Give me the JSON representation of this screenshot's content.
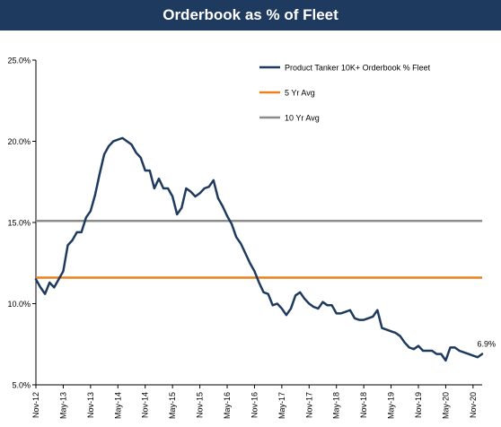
{
  "header": {
    "title": "Orderbook as % of Fleet"
  },
  "colors": {
    "title_bg": "#1f3a5f",
    "main_series": "#1f3a5f",
    "avg5": "#e8821e",
    "avg10": "#8c8c8c"
  },
  "chart_data": {
    "type": "line",
    "title": "Orderbook as % of Fleet",
    "xlabel": "",
    "ylabel": "",
    "ylim": [
      5,
      25
    ],
    "y_ticks": [
      "5.0%",
      "10.0%",
      "15.0%",
      "20.0%",
      "25.0%"
    ],
    "y_tick_values": [
      5,
      10,
      15,
      20,
      25
    ],
    "x_ticks": [
      "Nov-12",
      "May-13",
      "Nov-13",
      "May-14",
      "Nov-14",
      "May-15",
      "Nov-15",
      "May-16",
      "Nov-16",
      "May-17",
      "Nov-17",
      "May-18",
      "Nov-18",
      "May-19",
      "Nov-19",
      "May-20",
      "Nov-20"
    ],
    "grid": false,
    "legend_position": "top-right",
    "series": [
      {
        "name": "Product Tanker 10K+ Orderbook % Fleet",
        "kind": "line",
        "values": [
          11.5,
          11.0,
          10.6,
          11.3,
          11.0,
          11.5,
          12.0,
          13.6,
          13.9,
          14.4,
          14.4,
          15.3,
          15.7,
          16.7,
          18.0,
          19.2,
          19.7,
          20.0,
          20.1,
          20.2,
          20.0,
          19.8,
          19.3,
          19.0,
          18.2,
          18.2,
          17.1,
          17.7,
          17.1,
          17.1,
          16.6,
          15.5,
          15.9,
          17.1,
          16.9,
          16.6,
          16.8,
          17.1,
          17.2,
          17.6,
          16.5,
          16.0,
          15.4,
          14.9,
          14.1,
          13.7,
          13.1,
          12.5,
          12.0,
          11.3,
          10.7,
          10.6,
          9.9,
          10.0,
          9.7,
          9.3,
          9.7,
          10.5,
          10.7,
          10.3,
          10.0,
          9.8,
          9.7,
          10.1,
          9.9,
          9.9,
          9.4,
          9.4,
          9.5,
          9.6,
          9.1,
          9.0,
          9.0,
          9.1,
          9.2,
          9.6,
          8.5,
          8.4,
          8.3,
          8.2,
          8.0,
          7.6,
          7.3,
          7.2,
          7.4,
          7.1,
          7.1,
          7.1,
          6.9,
          6.9,
          6.5,
          7.3,
          7.3,
          7.1,
          7.0,
          6.9,
          6.8,
          6.7,
          6.9
        ]
      },
      {
        "name": "5 Yr Avg",
        "kind": "hline",
        "value": 11.6
      },
      {
        "name": "10 Yr Avg",
        "kind": "hline",
        "value": 15.1
      }
    ],
    "annotations": [
      {
        "text": "6.9%",
        "target": "last-point-series-0"
      }
    ]
  }
}
